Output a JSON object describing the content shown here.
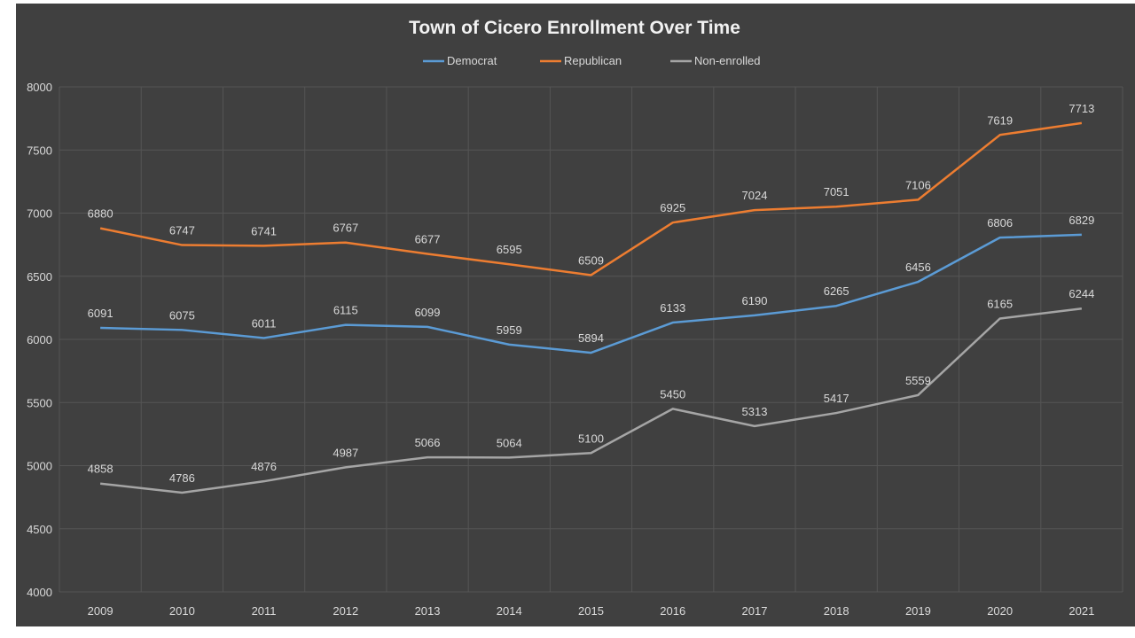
{
  "chart_data": {
    "type": "line",
    "title": "Town of Cicero Enrollment Over Time",
    "xlabel": "",
    "ylabel": "",
    "categories": [
      "2009",
      "2010",
      "2011",
      "2012",
      "2013",
      "2014",
      "2015",
      "2016",
      "2017",
      "2018",
      "2019",
      "2020",
      "2021"
    ],
    "ylim": [
      4000,
      8000
    ],
    "yticks": [
      4000,
      4500,
      5000,
      5500,
      6000,
      6500,
      7000,
      7500,
      8000
    ],
    "grid": true,
    "legend_position": "top-center",
    "series": [
      {
        "name": "Democrat",
        "color": "#5b9bd5",
        "values": [
          6091,
          6075,
          6011,
          6115,
          6099,
          5959,
          5894,
          6133,
          6190,
          6265,
          6456,
          6806,
          6829
        ]
      },
      {
        "name": "Republican",
        "color": "#ed7d31",
        "values": [
          6880,
          6747,
          6741,
          6767,
          6677,
          6595,
          6509,
          6925,
          7024,
          7051,
          7106,
          7619,
          7713
        ]
      },
      {
        "name": "Non-enrolled",
        "color": "#a5a5a5",
        "values": [
          4858,
          4786,
          4876,
          4987,
          5066,
          5064,
          5100,
          5450,
          5313,
          5417,
          5559,
          6165,
          6244
        ]
      }
    ]
  }
}
